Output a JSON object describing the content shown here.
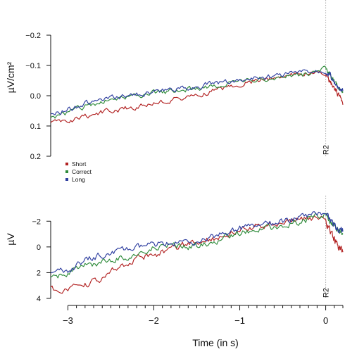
{
  "chart_data": [
    {
      "type": "line",
      "panel": "top",
      "ylabel": "µV/cm²",
      "yticks": [
        -0.2,
        -0.1,
        0.0,
        0.1,
        0.2
      ],
      "ylim": [
        0.2,
        -0.2
      ],
      "y_inverted": true,
      "xlim": [
        -3.2,
        0.2
      ],
      "event_marker": {
        "label": "R2",
        "x": 0
      },
      "legend": {
        "position": "lower-left",
        "entries": [
          "Short",
          "Correct",
          "Long"
        ]
      },
      "series": [
        {
          "name": "Short",
          "color": "#b22222",
          "x": [
            -3.2,
            -3.0,
            -2.8,
            -2.6,
            -2.4,
            -2.2,
            -2.0,
            -1.8,
            -1.6,
            -1.4,
            -1.2,
            -1.0,
            -0.8,
            -0.6,
            -0.4,
            -0.2,
            0.0,
            0.05,
            0.1,
            0.15,
            0.2
          ],
          "y": [
            0.09,
            0.085,
            0.07,
            0.055,
            0.045,
            0.035,
            0.025,
            0.015,
            0.005,
            -0.01,
            -0.025,
            -0.04,
            -0.05,
            -0.06,
            -0.07,
            -0.075,
            -0.07,
            -0.045,
            -0.02,
            -0.005,
            0.03
          ]
        },
        {
          "name": "Correct",
          "color": "#2e8b3a",
          "x": [
            -3.2,
            -3.0,
            -2.8,
            -2.6,
            -2.4,
            -2.2,
            -2.0,
            -1.8,
            -1.6,
            -1.4,
            -1.2,
            -1.0,
            -0.8,
            -0.6,
            -0.4,
            -0.2,
            0.0,
            0.05,
            0.1,
            0.15,
            0.2
          ],
          "y": [
            0.075,
            0.055,
            0.035,
            0.02,
            0.005,
            0.0,
            -0.01,
            -0.015,
            -0.02,
            -0.025,
            -0.035,
            -0.045,
            -0.055,
            -0.06,
            -0.065,
            -0.07,
            -0.095,
            -0.075,
            -0.045,
            -0.025,
            -0.01
          ]
        },
        {
          "name": "Long",
          "color": "#2f3fa0",
          "x": [
            -3.2,
            -3.0,
            -2.8,
            -2.6,
            -2.4,
            -2.2,
            -2.0,
            -1.8,
            -1.6,
            -1.4,
            -1.2,
            -1.0,
            -0.8,
            -0.6,
            -0.4,
            -0.2,
            0.0,
            0.05,
            0.1,
            0.15,
            0.2
          ],
          "y": [
            0.065,
            0.045,
            0.025,
            0.015,
            0.005,
            -0.005,
            -0.01,
            -0.02,
            -0.025,
            -0.035,
            -0.045,
            -0.05,
            -0.06,
            -0.065,
            -0.075,
            -0.08,
            -0.085,
            -0.07,
            -0.04,
            -0.02,
            -0.015
          ]
        }
      ]
    },
    {
      "type": "line",
      "panel": "bottom",
      "ylabel": "µV",
      "yticks": [
        -2,
        0,
        2,
        4
      ],
      "ylim": [
        4,
        -3
      ],
      "y_inverted": true,
      "xlim": [
        -3.2,
        0.2
      ],
      "xlabel": "Time (in s)",
      "xticks": [
        -3,
        -2,
        -1,
        0
      ],
      "xtick_labels": [
        "−3",
        "−2",
        "−1",
        "0"
      ],
      "event_marker": {
        "label": "R2",
        "x": 0
      },
      "series": [
        {
          "name": "Short",
          "color": "#b22222",
          "x": [
            -3.2,
            -3.0,
            -2.8,
            -2.6,
            -2.4,
            -2.2,
            -2.0,
            -1.8,
            -1.6,
            -1.4,
            -1.2,
            -1.0,
            -0.8,
            -0.6,
            -0.4,
            -0.2,
            0.0,
            0.05,
            0.1,
            0.15,
            0.2
          ],
          "y": [
            3.2,
            3.4,
            3.0,
            2.5,
            1.5,
            0.9,
            0.6,
            0.2,
            -0.2,
            -0.5,
            -0.9,
            -1.3,
            -1.6,
            -1.9,
            -2.1,
            -2.3,
            -2.0,
            -1.3,
            -0.6,
            0.1,
            0.4
          ]
        },
        {
          "name": "Correct",
          "color": "#2e8b3a",
          "x": [
            -3.2,
            -3.0,
            -2.8,
            -2.6,
            -2.4,
            -2.2,
            -2.0,
            -1.8,
            -1.6,
            -1.4,
            -1.2,
            -1.0,
            -0.8,
            -0.6,
            -0.4,
            -0.2,
            0.0,
            0.05,
            0.1,
            0.15,
            0.2
          ],
          "y": [
            2.5,
            2.0,
            1.5,
            1.2,
            0.9,
            0.6,
            0.1,
            -0.1,
            0.0,
            -0.2,
            -0.7,
            -1.1,
            -1.3,
            -1.5,
            -1.8,
            -2.1,
            -2.6,
            -2.0,
            -1.5,
            -1.2,
            -1.0
          ]
        },
        {
          "name": "Long",
          "color": "#2f3fa0",
          "x": [
            -3.2,
            -3.0,
            -2.8,
            -2.6,
            -2.4,
            -2.2,
            -2.0,
            -1.8,
            -1.6,
            -1.4,
            -1.2,
            -1.0,
            -0.8,
            -0.6,
            -0.4,
            -0.2,
            0.0,
            0.05,
            0.1,
            0.15,
            0.2
          ],
          "y": [
            2.2,
            1.8,
            1.1,
            0.6,
            0.3,
            0.1,
            -0.2,
            -0.3,
            -0.4,
            -0.6,
            -1.0,
            -1.4,
            -1.6,
            -1.8,
            -2.1,
            -2.4,
            -2.8,
            -2.2,
            -1.6,
            -1.3,
            -1.2
          ]
        }
      ]
    }
  ]
}
